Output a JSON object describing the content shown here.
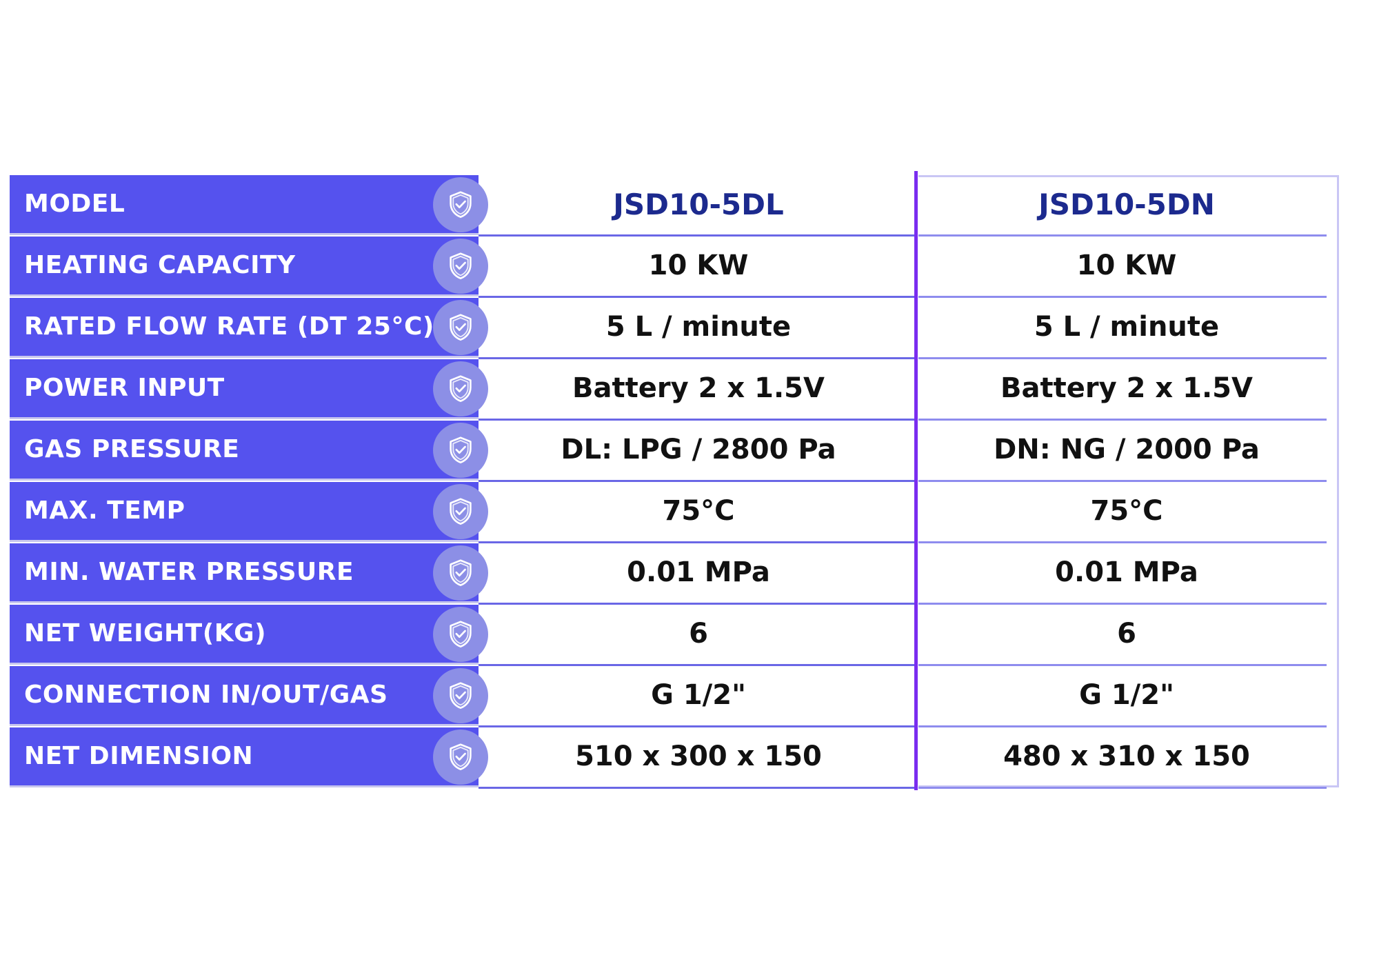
{
  "accent_color": "#5552ee",
  "divider_color": "#7a2df0",
  "row_icon": "shield-check-icon",
  "header": {
    "label": "MODEL",
    "model_1": "JSD10-5DL",
    "model_2": "JSD10-5DN"
  },
  "specs": [
    {
      "label": "HEATING CAPACITY",
      "v1": "10 KW",
      "v2": "10 KW"
    },
    {
      "label": "RATED FLOW RATE (DT 25°C)",
      "v1": "5 L / minute",
      "v2": "5 L / minute"
    },
    {
      "label": "POWER INPUT",
      "v1": "Battery 2 x 1.5V",
      "v2": "Battery 2 x 1.5V"
    },
    {
      "label": "GAS PRESSURE",
      "v1": "DL: LPG / 2800 Pa",
      "v2": "DN: NG / 2000 Pa"
    },
    {
      "label": "MAX. TEMP",
      "v1": "75°C",
      "v2": "75°C"
    },
    {
      "label": "MIN. WATER PRESSURE",
      "v1": "0.01 MPa",
      "v2": "0.01 MPa"
    },
    {
      "label": "NET WEIGHT(KG)",
      "v1": "6",
      "v2": "6"
    },
    {
      "label": "CONNECTION IN/OUT/GAS",
      "v1": "G 1/2\"",
      "v2": "G 1/2\""
    },
    {
      "label": "NET DIMENSION",
      "v1": "510 x 300 x 150",
      "v2": "480 x 310 x 150"
    }
  ]
}
